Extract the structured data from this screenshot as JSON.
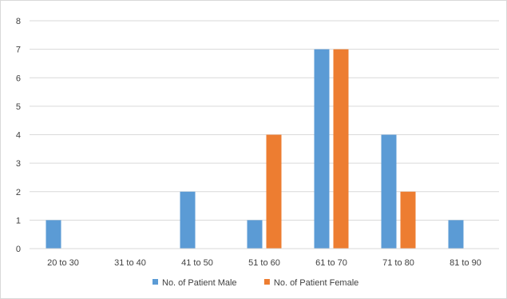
{
  "chart_data": {
    "type": "bar",
    "categories": [
      "20 to 30",
      "31 to 40",
      "41 to 50",
      "51 to 60",
      "61 to 70",
      "71 to 80",
      "81 to 90"
    ],
    "series": [
      {
        "name": "No. of Patient Male",
        "color": "#5b9bd5",
        "values": [
          1,
          0,
          2,
          1,
          7,
          4,
          1
        ]
      },
      {
        "name": "No. of Patient Female",
        "color": "#ed7d31",
        "values": [
          0,
          0,
          0,
          4,
          7,
          2,
          0
        ]
      }
    ],
    "title": "",
    "xlabel": "",
    "ylabel": "",
    "ylim": [
      0,
      8
    ],
    "yticks": [
      0,
      1,
      2,
      3,
      4,
      5,
      6,
      7,
      8
    ],
    "grid": true,
    "legend_position": "bottom"
  }
}
